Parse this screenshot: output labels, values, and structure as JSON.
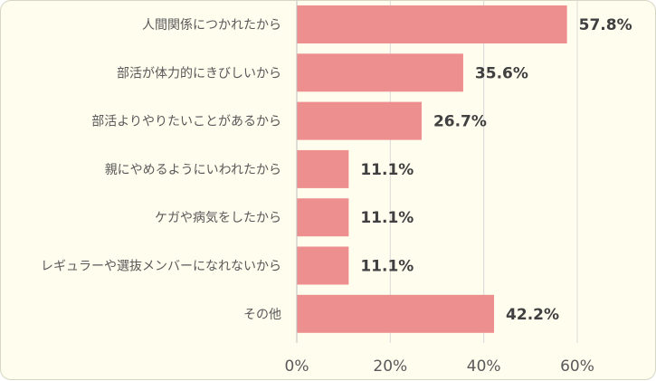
{
  "chart_data": {
    "type": "bar",
    "orientation": "horizontal",
    "categories": [
      "人間関係につかれたから",
      "部活が体力的にきびしいから",
      "部活よりやりたいことがあるから",
      "親にやめるようにいわれたから",
      "ケガや病気をしたから",
      "レギュラーや選抜メンバーになれないから",
      "その他"
    ],
    "values": [
      57.8,
      35.6,
      26.7,
      11.1,
      11.1,
      11.1,
      42.2
    ],
    "value_labels": [
      "57.8%",
      "35.6%",
      "26.7%",
      "11.1%",
      "11.1%",
      "11.1%",
      "42.2%"
    ],
    "x_ticks": [
      "0%",
      "20%",
      "40%",
      "60%"
    ],
    "xlim": [
      0,
      60
    ],
    "grid": true,
    "bar_color": "#ee8f8f",
    "grid_color": "#d9d9d9"
  }
}
